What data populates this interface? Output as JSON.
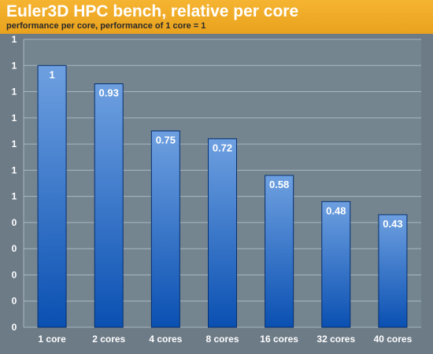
{
  "chart_data": {
    "type": "bar",
    "title": "Euler3D HPC bench, relative per core",
    "subtitle": "performance per core, performance of 1 core = 1",
    "categories": [
      "1 core",
      "2 cores",
      "4 cores",
      "8 cores",
      "16 cores",
      "32 cores",
      "40 cores"
    ],
    "values": [
      1,
      0.93,
      0.75,
      0.72,
      0.58,
      0.48,
      0.43
    ],
    "data_labels": [
      "1",
      "0.93",
      "0.75",
      "0.72",
      "0.58",
      "0.48",
      "0.43"
    ],
    "y_tick_labels": [
      "0",
      "0",
      "0",
      "0",
      "0",
      "1",
      "1",
      "1",
      "1",
      "1",
      "1",
      "1"
    ],
    "ylim": [
      0,
      1.1
    ],
    "xlabel": "",
    "ylabel": "",
    "grid": true,
    "legend": "none",
    "colors": {
      "header": "#f1ae2a",
      "plot_background": "#748590",
      "bar_top": "#6ea0e0",
      "bar_bottom": "#0a50b2",
      "bar_edge": "#062f6e"
    }
  }
}
